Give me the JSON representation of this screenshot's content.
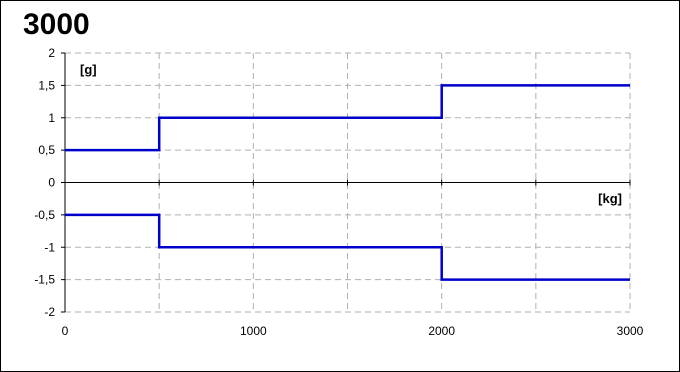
{
  "chart_data": {
    "type": "line",
    "title": "3000",
    "x_unit_label": "[kg]",
    "y_unit_label": "[g]",
    "xlim": [
      0,
      3000
    ],
    "ylim": [
      -2,
      2
    ],
    "x_ticks": [
      0,
      1000,
      2000,
      3000
    ],
    "x_tick_labels": [
      "0",
      "1000",
      "2000",
      "3000"
    ],
    "y_ticks": [
      2,
      1.5,
      1,
      0.5,
      0,
      -0.5,
      -1,
      -1.5,
      -2
    ],
    "y_tick_labels": [
      "2",
      "1,5",
      "1",
      "0,5",
      "0",
      "-0,5",
      "-1",
      "-1,5",
      "-2"
    ],
    "grid": true,
    "line_style": "step",
    "series": [
      {
        "color": "#0000cc",
        "x": [
          0,
          500,
          500,
          2000,
          2000,
          3000
        ],
        "y": [
          0.5,
          0.5,
          1,
          1,
          1.5,
          1.5
        ]
      },
      {
        "color": "#0000cc",
        "x": [
          0,
          500,
          500,
          2000,
          2000,
          3000
        ],
        "y": [
          -0.5,
          -0.5,
          -1,
          -1,
          -1.5,
          -1.5
        ]
      }
    ]
  }
}
